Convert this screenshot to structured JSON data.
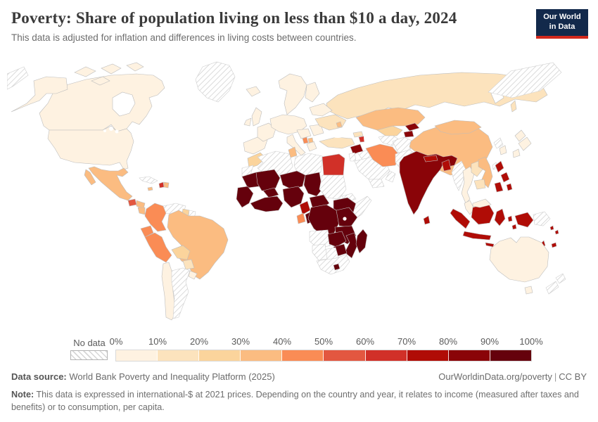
{
  "header": {
    "title": "Poverty: Share of population living on less than $10 a day, 2024",
    "subtitle": "This data is adjusted for inflation and differences in living costs between countries."
  },
  "logo": {
    "line1": "Our World",
    "line2": "in Data",
    "bg_color": "#12294b",
    "bar_color": "#d2281c"
  },
  "legend": {
    "no_data_label": "No data",
    "tick_labels": [
      "0%",
      "10%",
      "20%",
      "30%",
      "40%",
      "50%",
      "60%",
      "70%",
      "80%",
      "90%",
      "100%"
    ],
    "bin_colors": [
      "#fef2e1",
      "#fce3bd",
      "#fbd49c",
      "#fbbc81",
      "#fa8c55",
      "#e35740",
      "#d13028",
      "#b00c06",
      "#8a0408",
      "#65010c"
    ]
  },
  "footer": {
    "datasource_label": "Data source:",
    "datasource_value": "World Bank Poverty and Inequality Platform (2025)",
    "link": "OurWorldinData.org/poverty",
    "separator": "|",
    "license": "CC BY",
    "note_label": "Note:",
    "note_text": "This data is expressed in international-$ at 2021 prices. Depending on the country and year, it relates to income (measured after taxes and benefits) or to consumption, per capita."
  },
  "chart_data": {
    "type": "heatmap",
    "subtype": "choropleth_world_map",
    "title": "Poverty: Share of population living on less than $10 a day, 2024",
    "unit": "% of population living on less than $10 a day",
    "legend_bins": [
      "0-10%",
      "10-20%",
      "20-30%",
      "30-40%",
      "40-50%",
      "50-60%",
      "60-70%",
      "70-80%",
      "80-90%",
      "90-100%"
    ],
    "countries": [
      {
        "name": "Russia",
        "bin": 1
      },
      {
        "name": "Canada",
        "bin": 0
      },
      {
        "name": "United States",
        "bin": 0
      },
      {
        "name": "Alaska (United States)",
        "bin": 0
      },
      {
        "name": "Canadian Arctic Islands",
        "bin": 0
      },
      {
        "name": "Greenland",
        "bin": "no_data"
      },
      {
        "name": "Chukotka (Arctic)",
        "bin": "no_data"
      },
      {
        "name": "Arctic sliver (west)",
        "bin": "no_data"
      },
      {
        "name": "Mexico",
        "bin": 3
      },
      {
        "name": "Baja California (Mexico)",
        "bin": 3
      },
      {
        "name": "Guatemala",
        "bin": 5
      },
      {
        "name": "Honduras",
        "bin": 3
      },
      {
        "name": "Nicaragua",
        "bin": 3
      },
      {
        "name": "Costa Rica and Panama",
        "bin": 3
      },
      {
        "name": "Cuba",
        "bin": "no_data"
      },
      {
        "name": "Jamaica",
        "bin": 3
      },
      {
        "name": "Haiti",
        "bin": 6
      },
      {
        "name": "Dominican Republic",
        "bin": 3
      },
      {
        "name": "Colombia",
        "bin": 4
      },
      {
        "name": "Venezuela",
        "bin": "no_data"
      },
      {
        "name": "Guyana",
        "bin": 2
      },
      {
        "name": "Suriname",
        "bin": "no_data"
      },
      {
        "name": "Ecuador",
        "bin": 4
      },
      {
        "name": "Peru",
        "bin": 4
      },
      {
        "name": "Brazil",
        "bin": 3
      },
      {
        "name": "Bolivia",
        "bin": 2
      },
      {
        "name": "Paraguay",
        "bin": 1
      },
      {
        "name": "Chile",
        "bin": 0
      },
      {
        "name": "Argentina",
        "bin": "no_data"
      },
      {
        "name": "Uruguay",
        "bin": 0
      },
      {
        "name": "Iceland",
        "bin": 0
      },
      {
        "name": "United Kingdom",
        "bin": 0
      },
      {
        "name": "Ireland",
        "bin": 0
      },
      {
        "name": "Norway and Sweden",
        "bin": 0
      },
      {
        "name": "Finland",
        "bin": 0
      },
      {
        "name": "Denmark",
        "bin": 0
      },
      {
        "name": "Spain and Portugal",
        "bin": 0
      },
      {
        "name": "France",
        "bin": 0
      },
      {
        "name": "Central Europe",
        "bin": 0
      },
      {
        "name": "Italy",
        "bin": 0
      },
      {
        "name": "Sicily (Italy)",
        "bin": 0
      },
      {
        "name": "Greece",
        "bin": 0
      },
      {
        "name": "Western Balkans",
        "bin": 0
      },
      {
        "name": "Albania",
        "bin": 4
      },
      {
        "name": "North Macedonia",
        "bin": 3
      },
      {
        "name": "Romania and Bulgaria",
        "bin": 0
      },
      {
        "name": "Ukraine",
        "bin": 1
      },
      {
        "name": "Belarus and Baltics",
        "bin": 0
      },
      {
        "name": "Moldova",
        "bin": 3
      },
      {
        "name": "Turkey",
        "bin": 1
      },
      {
        "name": "Georgia",
        "bin": 1
      },
      {
        "name": "Armenia and Azerbaijan",
        "bin": 6
      },
      {
        "name": "Syria",
        "bin": 8
      },
      {
        "name": "Iraq",
        "bin": "no_data"
      },
      {
        "name": "Jordan and Israel",
        "bin": "no_data"
      },
      {
        "name": "Saudi Arabia",
        "bin": "no_data"
      },
      {
        "name": "Yemen",
        "bin": "no_data"
      },
      {
        "name": "Oman",
        "bin": "no_data"
      },
      {
        "name": "Iran",
        "bin": 4
      },
      {
        "name": "Turkmenistan",
        "bin": "no_data"
      },
      {
        "name": "Uzbekistan",
        "bin": 2
      },
      {
        "name": "Kazakhstan",
        "bin": 3
      },
      {
        "name": "Kyrgyzstan",
        "bin": 8
      },
      {
        "name": "Tajikistan",
        "bin": 8
      },
      {
        "name": "Afghanistan",
        "bin": "no_data"
      },
      {
        "name": "Pakistan",
        "bin": "no_data"
      },
      {
        "name": "China",
        "bin": 3
      },
      {
        "name": "Mongolia",
        "bin": 3
      },
      {
        "name": "North Korea",
        "bin": "no_data"
      },
      {
        "name": "South Korea",
        "bin": 0
      },
      {
        "name": "Japan",
        "bin": 0
      },
      {
        "name": "Taiwan",
        "bin": "no_data"
      },
      {
        "name": "India",
        "bin": 8
      },
      {
        "name": "Nepal",
        "bin": 7
      },
      {
        "name": "Bangladesh",
        "bin": 7
      },
      {
        "name": "Sri Lanka",
        "bin": 7
      },
      {
        "name": "Myanmar",
        "bin": "no_data"
      },
      {
        "name": "Thailand",
        "bin": 0
      },
      {
        "name": "Laos",
        "bin": 1
      },
      {
        "name": "Vietnam",
        "bin": 3
      },
      {
        "name": "Cambodia",
        "bin": 1
      },
      {
        "name": "Malaysia (peninsula)",
        "bin": 0
      },
      {
        "name": "Philippines",
        "bin": 7
      },
      {
        "name": "Sumatra (Indonesia)",
        "bin": 7
      },
      {
        "name": "Java (Indonesia)",
        "bin": 7
      },
      {
        "name": "Kalimantan (Indonesia)",
        "bin": 7
      },
      {
        "name": "Malaysia (Borneo)",
        "bin": 0
      },
      {
        "name": "Sulawesi (Indonesia)",
        "bin": 7
      },
      {
        "name": "Lesser Sunda Islands (Indonesia)",
        "bin": 7
      },
      {
        "name": "Maluku Islands (Indonesia)",
        "bin": 7
      },
      {
        "name": "West Papua (Indonesia)",
        "bin": 7
      },
      {
        "name": "Papua New Guinea",
        "bin": "no_data"
      },
      {
        "name": "Solomon Islands",
        "bin": 7
      },
      {
        "name": "Vanuatu",
        "bin": 7
      },
      {
        "name": "Fiji",
        "bin": 7
      },
      {
        "name": "New Caledonia",
        "bin": "no_data"
      },
      {
        "name": "Australia",
        "bin": 0
      },
      {
        "name": "Tasmania (Australia)",
        "bin": 0
      },
      {
        "name": "New Zealand",
        "bin": "no_data"
      },
      {
        "name": "Morocco",
        "bin": 2
      },
      {
        "name": "Western Sahara",
        "bin": "no_data"
      },
      {
        "name": "Algeria",
        "bin": "no_data"
      },
      {
        "name": "Tunisia",
        "bin": 3
      },
      {
        "name": "Libya",
        "bin": "no_data"
      },
      {
        "name": "Egypt",
        "bin": 6
      },
      {
        "name": "Mauritania",
        "bin": 9
      },
      {
        "name": "Mali",
        "bin": 9
      },
      {
        "name": "Niger",
        "bin": 9
      },
      {
        "name": "Chad",
        "bin": 9
      },
      {
        "name": "Sudan",
        "bin": "no_data"
      },
      {
        "name": "Senegal and Guinea region",
        "bin": 9
      },
      {
        "name": "Burkina Faso",
        "bin": 9
      },
      {
        "name": "Cote d'Ivoire and Ghana region",
        "bin": 9
      },
      {
        "name": "Nigeria",
        "bin": 9
      },
      {
        "name": "Cameroon",
        "bin": 7
      },
      {
        "name": "Central African Republic",
        "bin": 9
      },
      {
        "name": "Eritrea and Djibouti",
        "bin": "no_data"
      },
      {
        "name": "Ethiopia",
        "bin": 9
      },
      {
        "name": "Somalia",
        "bin": "no_data"
      },
      {
        "name": "Gabon",
        "bin": 4
      },
      {
        "name": "Congo",
        "bin": 9
      },
      {
        "name": "Democratic Republic of Congo",
        "bin": 9
      },
      {
        "name": "Uganda and Kenya",
        "bin": 9
      },
      {
        "name": "Tanzania",
        "bin": 9
      },
      {
        "name": "Angola",
        "bin": "no_data"
      },
      {
        "name": "Zambia",
        "bin": 9
      },
      {
        "name": "Mozambique and Malawi",
        "bin": 9
      },
      {
        "name": "Zimbabwe",
        "bin": 9
      },
      {
        "name": "Botswana",
        "bin": "no_data"
      },
      {
        "name": "Namibia",
        "bin": "no_data"
      },
      {
        "name": "South Africa",
        "bin": "no_data"
      },
      {
        "name": "Lesotho",
        "bin": 9
      },
      {
        "name": "Madagascar",
        "bin": 9
      }
    ]
  }
}
